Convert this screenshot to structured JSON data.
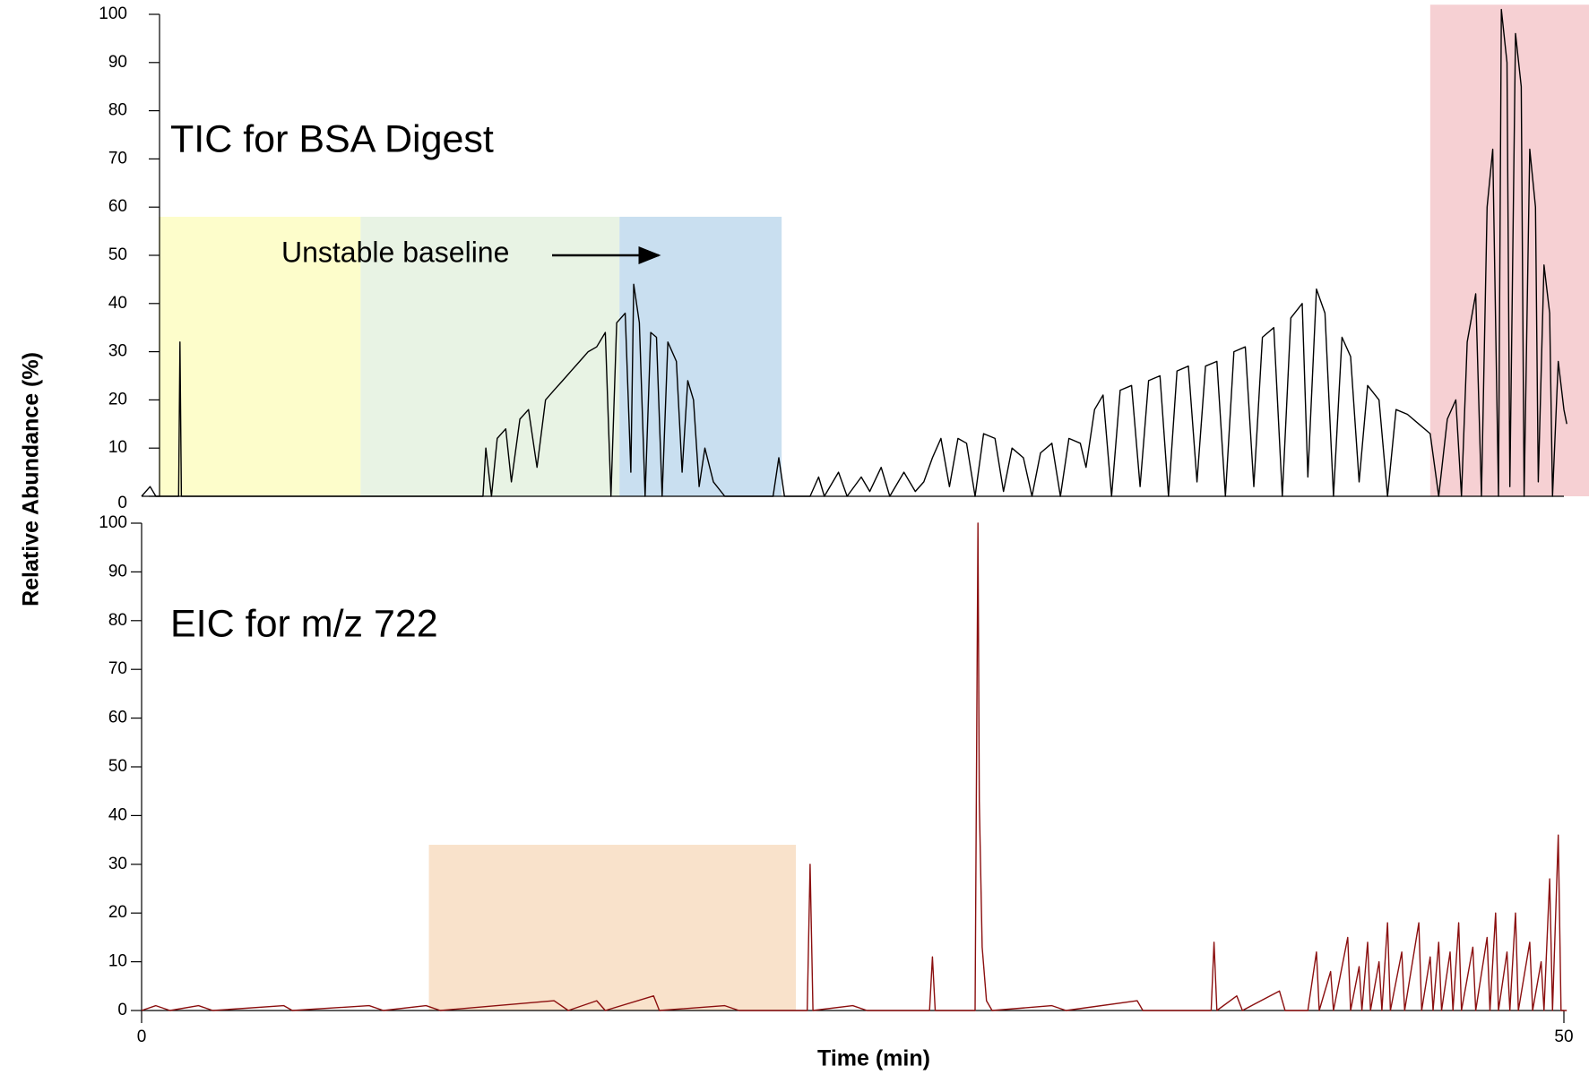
{
  "chart_data": [
    {
      "type": "line",
      "title": "TIC for BSA Digest",
      "title_color": "#000000",
      "color": "#000000",
      "ylabel": "Relative Abundance (%)",
      "annotation": "Unstable baseline",
      "xlim": [
        0,
        50
      ],
      "ylim": [
        0,
        100
      ],
      "yticks": [
        0,
        10,
        20,
        30,
        40,
        50,
        60,
        70,
        80,
        90,
        100
      ],
      "highlights": [
        {
          "x": [
            0.6,
            7.7
          ],
          "y": [
            0,
            58
          ],
          "color": "#fdfdcb"
        },
        {
          "x": [
            7.7,
            16.8
          ],
          "y": [
            0,
            58
          ],
          "color": "#e8f3e4"
        },
        {
          "x": [
            16.8,
            22.5
          ],
          "y": [
            0,
            58
          ],
          "color": "#c9dff0"
        },
        {
          "x": [
            45.3,
            50.9
          ],
          "y": [
            0,
            102
          ],
          "color": "#f6d0d3"
        }
      ],
      "x": [
        0,
        0.3,
        0.5,
        1.3,
        1.35,
        1.4,
        12.0,
        12.1,
        12.3,
        12.5,
        12.8,
        13.0,
        13.3,
        13.6,
        13.9,
        14.2,
        14.5,
        14.8,
        15.1,
        15.4,
        15.7,
        16.0,
        16.3,
        16.5,
        16.7,
        17.0,
        17.2,
        17.3,
        17.5,
        17.7,
        17.9,
        18.1,
        18.3,
        18.5,
        18.8,
        19.0,
        19.2,
        19.4,
        19.6,
        19.8,
        20.1,
        20.5,
        22.2,
        22.4,
        22.6,
        23.5,
        23.8,
        24.0,
        24.5,
        24.8,
        25.3,
        25.6,
        26.0,
        26.3,
        26.8,
        27.2,
        27.5,
        27.8,
        28.1,
        28.4,
        28.7,
        29.0,
        29.3,
        29.6,
        30.0,
        30.3,
        30.6,
        31.0,
        31.3,
        31.6,
        32.0,
        32.3,
        32.6,
        33.0,
        33.2,
        33.5,
        33.8,
        34.1,
        34.4,
        34.8,
        35.1,
        35.4,
        35.8,
        36.1,
        36.4,
        36.8,
        37.1,
        37.4,
        37.8,
        38.1,
        38.4,
        38.8,
        39.1,
        39.4,
        39.8,
        40.1,
        40.4,
        40.8,
        41.0,
        41.3,
        41.6,
        41.9,
        42.2,
        42.5,
        42.8,
        43.1,
        43.5,
        43.8,
        44.1,
        44.5,
        44.9,
        45.3,
        45.6,
        45.9,
        46.2,
        46.4,
        46.6,
        46.9,
        47.1,
        47.3,
        47.5,
        47.7,
        47.8,
        48.0,
        48.1,
        48.3,
        48.5,
        48.6,
        48.8,
        49.0,
        49.1,
        49.3,
        49.5,
        49.6,
        49.8,
        50.0,
        50.1
      ],
      "values": [
        0,
        2,
        0,
        0,
        32,
        0,
        0,
        10,
        0,
        12,
        14,
        3,
        16,
        18,
        6,
        20,
        22,
        24,
        26,
        28,
        30,
        31,
        34,
        0,
        36,
        38,
        5,
        44,
        36,
        0,
        34,
        33,
        0,
        32,
        28,
        5,
        24,
        20,
        2,
        10,
        3,
        0,
        0,
        8,
        0,
        0,
        4,
        0,
        5,
        0,
        4,
        1,
        6,
        0,
        5,
        1,
        3,
        8,
        12,
        2,
        12,
        11,
        0,
        13,
        12,
        1,
        10,
        8,
        0,
        9,
        11,
        0,
        12,
        11,
        6,
        18,
        21,
        0,
        22,
        23,
        2,
        24,
        25,
        0,
        26,
        27,
        3,
        27,
        28,
        0,
        30,
        31,
        2,
        33,
        35,
        0,
        37,
        40,
        4,
        43,
        38,
        0,
        33,
        29,
        3,
        23,
        20,
        0,
        18,
        17,
        15,
        13,
        0,
        16,
        20,
        0,
        32,
        42,
        0,
        60,
        72,
        0,
        101,
        90,
        2,
        96,
        85,
        0,
        72,
        60,
        3,
        48,
        38,
        0,
        28,
        18,
        15
      ]
    },
    {
      "type": "line",
      "title": "EIC for m/z 722",
      "title_color": "#a0202e",
      "color": "#8b0f0f",
      "xlabel": "Time (min)",
      "xlim": [
        0,
        50
      ],
      "xticks": [
        0,
        50
      ],
      "ylim": [
        0,
        100
      ],
      "yticks": [
        0,
        10,
        20,
        30,
        40,
        50,
        60,
        70,
        80,
        90,
        100
      ],
      "highlights": [
        {
          "x": [
            10.1,
            23.0
          ],
          "y": [
            0,
            34
          ],
          "color": "#f9e2cb"
        }
      ],
      "x": [
        0,
        0.5,
        1,
        2,
        2.5,
        5,
        5.3,
        8,
        8.5,
        10,
        10.5,
        14.5,
        15,
        16,
        16.3,
        18,
        18.2,
        20.5,
        21,
        23.4,
        23.5,
        23.6,
        25,
        25.5,
        27.7,
        27.8,
        27.9,
        29.3,
        29.4,
        29.45,
        29.55,
        29.7,
        29.9,
        32,
        32.5,
        35,
        35.2,
        37.6,
        37.7,
        37.8,
        38.5,
        38.7,
        40,
        40.2,
        41.0,
        41.3,
        41.4,
        41.8,
        41.9,
        42.4,
        42.5,
        42.8,
        42.9,
        43.1,
        43.2,
        43.5,
        43.6,
        43.8,
        43.9,
        44.3,
        44.4,
        44.9,
        45.0,
        45.3,
        45.4,
        45.6,
        45.7,
        46.0,
        46.1,
        46.3,
        46.4,
        46.8,
        46.9,
        47.3,
        47.4,
        47.6,
        47.7,
        48.0,
        48.1,
        48.3,
        48.4,
        48.8,
        48.9,
        49.2,
        49.3,
        49.5,
        49.6,
        49.8,
        49.9,
        50.1
      ],
      "values": [
        0,
        1,
        0,
        1,
        0,
        1,
        0,
        1,
        0,
        1,
        0,
        2,
        0,
        2,
        0,
        3,
        0,
        1,
        0,
        0,
        30,
        0,
        1,
        0,
        0,
        11,
        0,
        0,
        100,
        43,
        13,
        2,
        0,
        1,
        0,
        2,
        0,
        0,
        14,
        0,
        3,
        0,
        4,
        0,
        0,
        12,
        0,
        8,
        0,
        15,
        0,
        9,
        0,
        14,
        0,
        10,
        0,
        18,
        0,
        12,
        0,
        18,
        0,
        11,
        0,
        14,
        0,
        12,
        0,
        18,
        0,
        13,
        0,
        15,
        0,
        20,
        0,
        12,
        0,
        20,
        0,
        14,
        0,
        10,
        0,
        27,
        0,
        36,
        0,
        0
      ]
    }
  ]
}
